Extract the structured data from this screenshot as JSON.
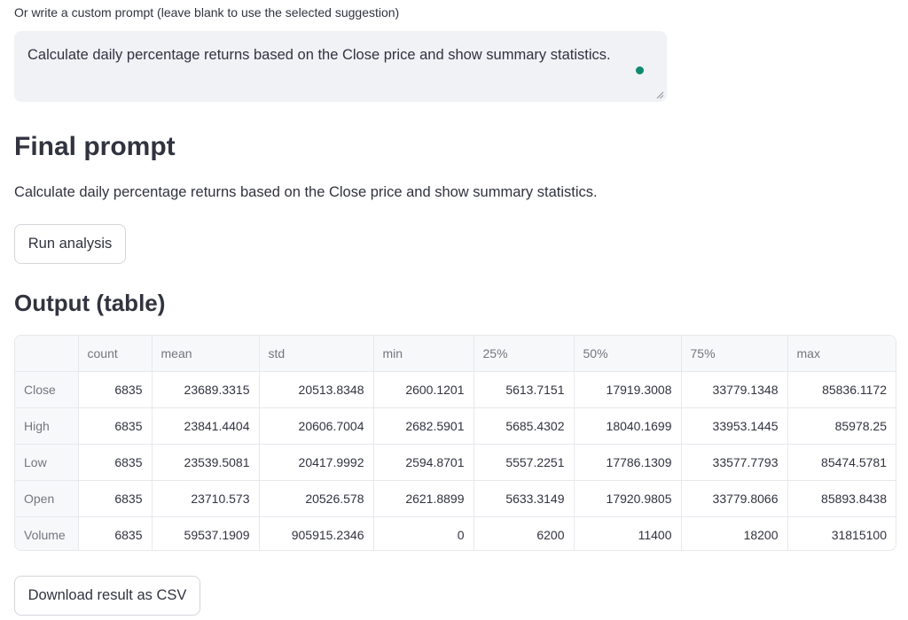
{
  "custom_prompt": {
    "label": "Or write a custom prompt (leave blank to use the selected suggestion)",
    "value": "Calculate daily percentage returns based on the Close price and show summary statistics."
  },
  "final_prompt": {
    "heading": "Final prompt",
    "text": "Calculate daily percentage returns based on the Close price and show summary statistics."
  },
  "buttons": {
    "run_label": "Run analysis",
    "download_label": "Download result as CSV"
  },
  "output": {
    "heading": "Output (table)",
    "columns": [
      "",
      "count",
      "mean",
      "std",
      "min",
      "25%",
      "50%",
      "75%",
      "max"
    ],
    "rows": [
      {
        "label": "Close",
        "values": [
          "6835",
          "23689.3315",
          "20513.8348",
          "2600.1201",
          "5613.7151",
          "17919.3008",
          "33779.1348",
          "85836.1172"
        ]
      },
      {
        "label": "High",
        "values": [
          "6835",
          "23841.4404",
          "20606.7004",
          "2682.5901",
          "5685.4302",
          "18040.1699",
          "33953.1445",
          "85978.25"
        ]
      },
      {
        "label": "Low",
        "values": [
          "6835",
          "23539.5081",
          "20417.9992",
          "2594.8701",
          "5557.2251",
          "17786.1309",
          "33577.7793",
          "85474.5781"
        ]
      },
      {
        "label": "Open",
        "values": [
          "6835",
          "23710.573",
          "20526.578",
          "2621.8899",
          "5633.3149",
          "17920.9805",
          "33779.8066",
          "85893.8438"
        ]
      },
      {
        "label": "Volume",
        "values": [
          "6835",
          "59537.1909",
          "905915.2346",
          "0",
          "6200",
          "11400",
          "18200",
          "31815100"
        ]
      }
    ]
  },
  "colors": {
    "focus_dot": "#0f8a6f",
    "input_bg": "#f0f2f6",
    "text": "#31333f"
  }
}
